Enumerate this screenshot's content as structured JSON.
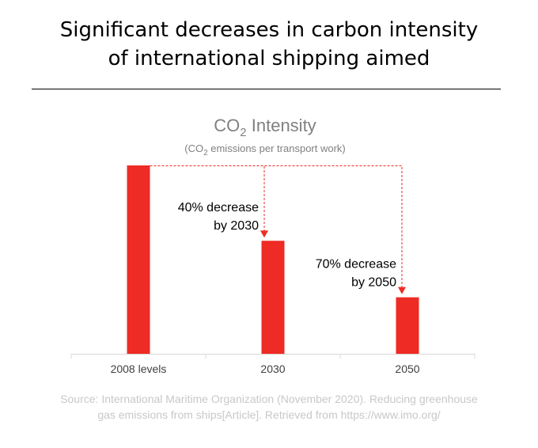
{
  "page": {
    "title_lines": [
      "Significant decreases in carbon intensity",
      "of international shipping aimed"
    ],
    "source_lines": [
      "Source: International Maritime Organization (November 2020). Reducing greenhouse",
      "gas emissions from ships[Article]. Retrieved from https://www.imo.org/"
    ]
  },
  "chart_data": {
    "type": "bar",
    "title": "CO2 Intensity",
    "title_parts": {
      "main": "CO",
      "subscript": "2",
      "rest": " Intensity"
    },
    "subtitle": "(CO2 emissions per transport work)",
    "subtitle_parts": {
      "open": "(CO",
      "subscript": "2",
      "rest": " emissions per transport work)"
    },
    "categories": [
      "2008 levels",
      "2030",
      "2050"
    ],
    "values": [
      100,
      60,
      30
    ],
    "unit": "percent of 2008 level",
    "ylim": [
      0,
      100
    ],
    "xlabel": "",
    "ylabel": "",
    "grid": false,
    "legend": "none",
    "bar_color": "#ee2b24",
    "title_color": "#808080",
    "annotations": [
      {
        "from_category": "2008 levels",
        "to_category": "2030",
        "lines": [
          "40% decrease",
          "by 2030"
        ],
        "color": "#ee2b24"
      },
      {
        "from_category": "2008 levels",
        "to_category": "2050",
        "lines": [
          "70% decrease",
          "by 2050"
        ],
        "color": "#ee2b24"
      }
    ]
  }
}
